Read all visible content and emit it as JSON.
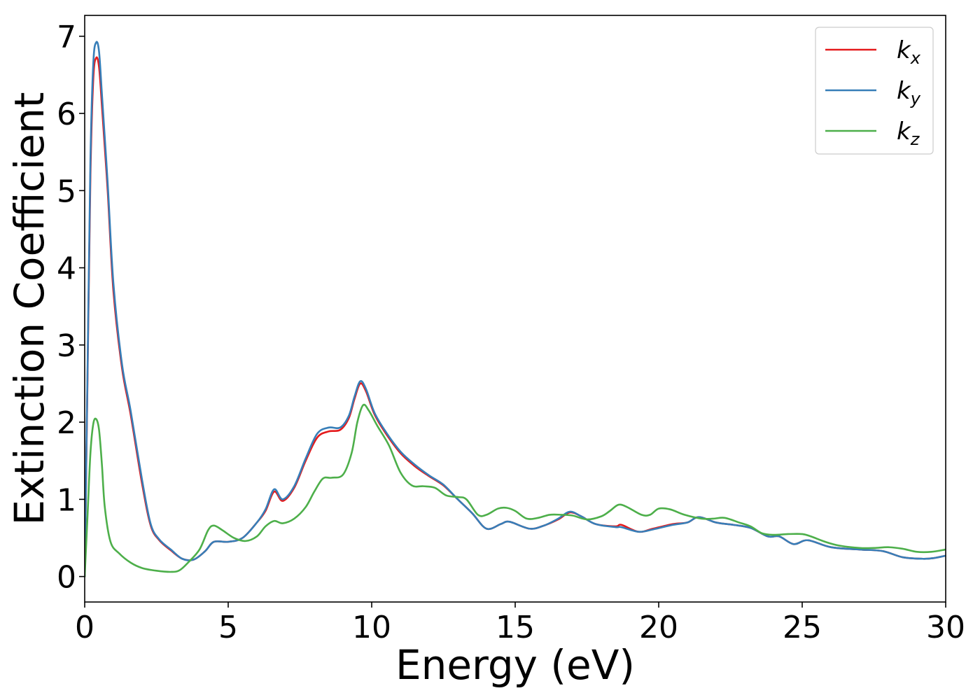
{
  "chart_data": {
    "type": "line",
    "title": "",
    "xlabel": "Energy (eV)",
    "ylabel": "Extinction Coefficient",
    "xlim": [
      0,
      30
    ],
    "ylim": [
      -0.33,
      7.27
    ],
    "xticks": [
      "0",
      "5",
      "10",
      "15",
      "20",
      "25",
      "30"
    ],
    "yticks": [
      "0",
      "1",
      "2",
      "3",
      "4",
      "5",
      "6",
      "7"
    ],
    "grid": false,
    "legend_position": "top-right",
    "series": [
      {
        "name": "k_x",
        "label_main": "k",
        "label_sub": "x",
        "color": "#e41a1c",
        "points": [
          [
            0,
            0
          ],
          [
            0.1,
            2.6
          ],
          [
            0.2,
            5.2
          ],
          [
            0.3,
            6.45
          ],
          [
            0.4,
            6.72
          ],
          [
            0.5,
            6.6
          ],
          [
            0.6,
            6.1
          ],
          [
            0.8,
            5.0
          ],
          [
            1.0,
            3.7
          ],
          [
            1.3,
            2.7
          ],
          [
            1.6,
            2.1
          ],
          [
            2.0,
            1.2
          ],
          [
            2.3,
            0.66
          ],
          [
            2.6,
            0.47
          ],
          [
            3.0,
            0.34
          ],
          [
            3.4,
            0.23
          ],
          [
            3.8,
            0.22
          ],
          [
            4.2,
            0.33
          ],
          [
            4.5,
            0.45
          ],
          [
            5.0,
            0.45
          ],
          [
            5.5,
            0.5
          ],
          [
            6.0,
            0.7
          ],
          [
            6.3,
            0.85
          ],
          [
            6.6,
            1.1
          ],
          [
            6.9,
            0.98
          ],
          [
            7.3,
            1.15
          ],
          [
            7.7,
            1.5
          ],
          [
            8.1,
            1.8
          ],
          [
            8.5,
            1.88
          ],
          [
            8.9,
            1.9
          ],
          [
            9.2,
            2.05
          ],
          [
            9.4,
            2.3
          ],
          [
            9.6,
            2.5
          ],
          [
            9.8,
            2.4
          ],
          [
            10.1,
            2.1
          ],
          [
            10.5,
            1.85
          ],
          [
            11.0,
            1.6
          ],
          [
            11.5,
            1.43
          ],
          [
            12.0,
            1.3
          ],
          [
            12.5,
            1.18
          ],
          [
            13.0,
            1.0
          ],
          [
            13.5,
            0.82
          ],
          [
            14.0,
            0.62
          ],
          [
            14.5,
            0.68
          ],
          [
            14.8,
            0.71
          ],
          [
            15.5,
            0.62
          ],
          [
            16.0,
            0.66
          ],
          [
            16.5,
            0.74
          ],
          [
            16.9,
            0.83
          ],
          [
            17.3,
            0.78
          ],
          [
            17.8,
            0.68
          ],
          [
            18.5,
            0.65
          ],
          [
            18.7,
            0.67
          ],
          [
            19.3,
            0.58
          ],
          [
            19.8,
            0.62
          ],
          [
            20.5,
            0.68
          ],
          [
            21.0,
            0.7
          ],
          [
            21.4,
            0.77
          ],
          [
            22.0,
            0.7
          ],
          [
            22.6,
            0.67
          ],
          [
            23.2,
            0.63
          ],
          [
            23.8,
            0.52
          ],
          [
            24.2,
            0.52
          ],
          [
            24.7,
            0.42
          ],
          [
            25.2,
            0.47
          ],
          [
            26.0,
            0.38
          ],
          [
            27.0,
            0.35
          ],
          [
            27.8,
            0.33
          ],
          [
            28.5,
            0.25
          ],
          [
            29.2,
            0.23
          ],
          [
            29.6,
            0.24
          ],
          [
            30.0,
            0.27
          ]
        ]
      },
      {
        "name": "k_y",
        "label_main": "k",
        "label_sub": "y",
        "color": "#377eb8",
        "points": [
          [
            0,
            0
          ],
          [
            0.1,
            2.7
          ],
          [
            0.2,
            5.4
          ],
          [
            0.3,
            6.65
          ],
          [
            0.4,
            6.92
          ],
          [
            0.5,
            6.8
          ],
          [
            0.6,
            6.25
          ],
          [
            0.8,
            5.1
          ],
          [
            1.0,
            3.8
          ],
          [
            1.3,
            2.75
          ],
          [
            1.6,
            2.15
          ],
          [
            2.0,
            1.25
          ],
          [
            2.3,
            0.68
          ],
          [
            2.6,
            0.48
          ],
          [
            3.0,
            0.35
          ],
          [
            3.4,
            0.23
          ],
          [
            3.8,
            0.22
          ],
          [
            4.2,
            0.33
          ],
          [
            4.5,
            0.45
          ],
          [
            5.0,
            0.45
          ],
          [
            5.5,
            0.5
          ],
          [
            6.0,
            0.7
          ],
          [
            6.3,
            0.87
          ],
          [
            6.6,
            1.13
          ],
          [
            6.9,
            1.0
          ],
          [
            7.3,
            1.17
          ],
          [
            7.7,
            1.53
          ],
          [
            8.1,
            1.85
          ],
          [
            8.5,
            1.93
          ],
          [
            8.9,
            1.93
          ],
          [
            9.2,
            2.08
          ],
          [
            9.4,
            2.33
          ],
          [
            9.6,
            2.53
          ],
          [
            9.8,
            2.43
          ],
          [
            10.1,
            2.12
          ],
          [
            10.5,
            1.87
          ],
          [
            11.0,
            1.62
          ],
          [
            11.5,
            1.45
          ],
          [
            12.0,
            1.31
          ],
          [
            12.5,
            1.19
          ],
          [
            13.0,
            1.0
          ],
          [
            13.5,
            0.82
          ],
          [
            14.0,
            0.62
          ],
          [
            14.5,
            0.68
          ],
          [
            14.8,
            0.71
          ],
          [
            15.5,
            0.62
          ],
          [
            16.0,
            0.66
          ],
          [
            16.5,
            0.75
          ],
          [
            16.9,
            0.84
          ],
          [
            17.3,
            0.78
          ],
          [
            17.8,
            0.68
          ],
          [
            18.5,
            0.64
          ],
          [
            18.7,
            0.64
          ],
          [
            19.3,
            0.58
          ],
          [
            19.8,
            0.61
          ],
          [
            20.5,
            0.67
          ],
          [
            21.0,
            0.7
          ],
          [
            21.4,
            0.77
          ],
          [
            22.0,
            0.7
          ],
          [
            22.6,
            0.67
          ],
          [
            23.2,
            0.63
          ],
          [
            23.8,
            0.52
          ],
          [
            24.2,
            0.52
          ],
          [
            24.7,
            0.42
          ],
          [
            25.2,
            0.47
          ],
          [
            26.0,
            0.38
          ],
          [
            27.0,
            0.35
          ],
          [
            27.8,
            0.33
          ],
          [
            28.5,
            0.25
          ],
          [
            29.2,
            0.23
          ],
          [
            29.6,
            0.24
          ],
          [
            30.0,
            0.27
          ]
        ]
      },
      {
        "name": "k_z",
        "label_main": "k",
        "label_sub": "z",
        "color": "#4daf4a",
        "points": [
          [
            0,
            0
          ],
          [
            0.1,
            0.8
          ],
          [
            0.2,
            1.6
          ],
          [
            0.3,
            1.98
          ],
          [
            0.4,
            2.04
          ],
          [
            0.5,
            1.9
          ],
          [
            0.6,
            1.45
          ],
          [
            0.7,
            0.9
          ],
          [
            0.9,
            0.45
          ],
          [
            1.2,
            0.3
          ],
          [
            1.6,
            0.18
          ],
          [
            2.0,
            0.11
          ],
          [
            2.5,
            0.075
          ],
          [
            3.0,
            0.06
          ],
          [
            3.3,
            0.08
          ],
          [
            3.6,
            0.18
          ],
          [
            4.0,
            0.35
          ],
          [
            4.3,
            0.6
          ],
          [
            4.5,
            0.66
          ],
          [
            4.8,
            0.6
          ],
          [
            5.2,
            0.5
          ],
          [
            5.6,
            0.46
          ],
          [
            6.0,
            0.52
          ],
          [
            6.3,
            0.65
          ],
          [
            6.6,
            0.72
          ],
          [
            6.9,
            0.69
          ],
          [
            7.3,
            0.75
          ],
          [
            7.7,
            0.9
          ],
          [
            8.0,
            1.1
          ],
          [
            8.3,
            1.27
          ],
          [
            8.6,
            1.28
          ],
          [
            9.0,
            1.32
          ],
          [
            9.3,
            1.6
          ],
          [
            9.5,
            2.0
          ],
          [
            9.7,
            2.22
          ],
          [
            9.9,
            2.15
          ],
          [
            10.2,
            1.95
          ],
          [
            10.6,
            1.7
          ],
          [
            11.0,
            1.35
          ],
          [
            11.4,
            1.18
          ],
          [
            11.8,
            1.17
          ],
          [
            12.2,
            1.15
          ],
          [
            12.6,
            1.05
          ],
          [
            13.0,
            1.03
          ],
          [
            13.3,
            1.0
          ],
          [
            13.7,
            0.8
          ],
          [
            14.0,
            0.8
          ],
          [
            14.4,
            0.88
          ],
          [
            14.7,
            0.89
          ],
          [
            15.0,
            0.85
          ],
          [
            15.4,
            0.75
          ],
          [
            15.8,
            0.76
          ],
          [
            16.2,
            0.8
          ],
          [
            16.6,
            0.8
          ],
          [
            17.0,
            0.79
          ],
          [
            17.5,
            0.74
          ],
          [
            18.0,
            0.78
          ],
          [
            18.3,
            0.85
          ],
          [
            18.6,
            0.93
          ],
          [
            18.9,
            0.9
          ],
          [
            19.4,
            0.8
          ],
          [
            19.7,
            0.8
          ],
          [
            20.0,
            0.88
          ],
          [
            20.4,
            0.87
          ],
          [
            20.9,
            0.8
          ],
          [
            21.5,
            0.75
          ],
          [
            21.9,
            0.75
          ],
          [
            22.3,
            0.76
          ],
          [
            22.8,
            0.7
          ],
          [
            23.2,
            0.65
          ],
          [
            23.6,
            0.56
          ],
          [
            24.0,
            0.54
          ],
          [
            24.5,
            0.55
          ],
          [
            25.0,
            0.55
          ],
          [
            25.3,
            0.52
          ],
          [
            25.8,
            0.45
          ],
          [
            26.3,
            0.4
          ],
          [
            27.0,
            0.37
          ],
          [
            27.5,
            0.37
          ],
          [
            28.0,
            0.38
          ],
          [
            28.5,
            0.36
          ],
          [
            29.0,
            0.32
          ],
          [
            29.5,
            0.32
          ],
          [
            30.0,
            0.35
          ]
        ]
      }
    ]
  }
}
